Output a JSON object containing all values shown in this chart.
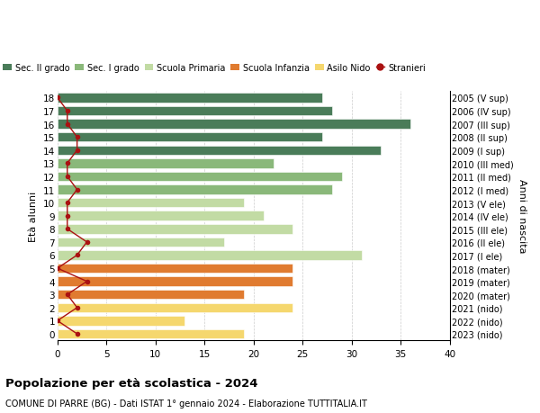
{
  "ages": [
    0,
    1,
    2,
    3,
    4,
    5,
    6,
    7,
    8,
    9,
    10,
    11,
    12,
    13,
    14,
    15,
    16,
    17,
    18
  ],
  "bar_values": [
    19,
    13,
    24,
    19,
    24,
    24,
    31,
    17,
    24,
    21,
    19,
    28,
    29,
    22,
    33,
    27,
    36,
    28,
    27
  ],
  "stranieri_values": [
    2,
    0,
    2,
    1,
    3,
    0,
    2,
    3,
    1,
    1,
    1,
    2,
    1,
    1,
    2,
    2,
    1,
    1,
    0
  ],
  "bar_colors": [
    "#f5d76e",
    "#f5d76e",
    "#f5d76e",
    "#e07b30",
    "#e07b30",
    "#e07b30",
    "#c2dba4",
    "#c2dba4",
    "#c2dba4",
    "#c2dba4",
    "#c2dba4",
    "#8ab87a",
    "#8ab87a",
    "#8ab87a",
    "#4a7c59",
    "#4a7c59",
    "#4a7c59",
    "#4a7c59",
    "#4a7c59"
  ],
  "right_labels": [
    "2023 (nido)",
    "2022 (nido)",
    "2021 (nido)",
    "2020 (mater)",
    "2019 (mater)",
    "2018 (mater)",
    "2017 (I ele)",
    "2016 (II ele)",
    "2015 (III ele)",
    "2014 (IV ele)",
    "2013 (V ele)",
    "2012 (I med)",
    "2011 (II med)",
    "2010 (III med)",
    "2009 (I sup)",
    "2008 (II sup)",
    "2007 (III sup)",
    "2006 (IV sup)",
    "2005 (V sup)"
  ],
  "legend_labels": [
    "Sec. II grado",
    "Sec. I grado",
    "Scuola Primaria",
    "Scuola Infanzia",
    "Asilo Nido",
    "Stranieri"
  ],
  "legend_colors": [
    "#4a7c59",
    "#8ab87a",
    "#c2dba4",
    "#e07b30",
    "#f5d76e",
    "#aa1111"
  ],
  "stranieri_color": "#aa1111",
  "title": "Popolazione per età scolastica - 2024",
  "subtitle": "COMUNE DI PARRE (BG) - Dati ISTAT 1° gennaio 2024 - Elaborazione TUTTITALIA.IT",
  "ylabel": "Età alunni",
  "right_ylabel": "Anni di nascita",
  "xlim": [
    0,
    40
  ],
  "xticks": [
    0,
    5,
    10,
    15,
    20,
    25,
    30,
    35,
    40
  ],
  "bar_height": 0.72,
  "fig_width": 6.0,
  "fig_height": 4.6,
  "bg_color": "#ffffff",
  "grid_color": "#cccccc"
}
